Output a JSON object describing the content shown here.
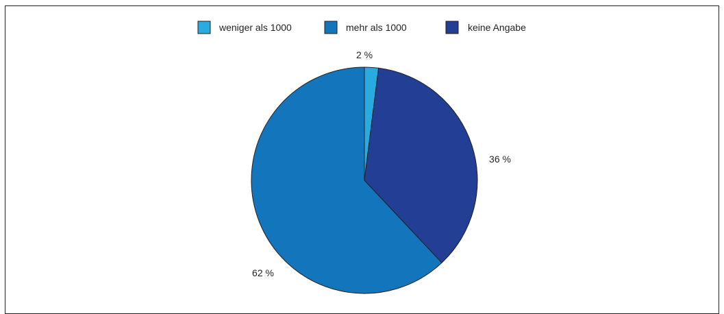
{
  "chart_data": {
    "type": "pie",
    "title": "",
    "legend_position": "top-center",
    "slices": [
      {
        "name": "weniger als 1000",
        "value": 2,
        "label": "2 %",
        "color": "#29abe2"
      },
      {
        "name": "mehr als 1000",
        "value": 62,
        "label": "62 %",
        "color": "#1375bc"
      },
      {
        "name": "keine Angabe",
        "value": 36,
        "label": "36 %",
        "color": "#233f95"
      }
    ],
    "draw_order": [
      0,
      2,
      1
    ]
  }
}
